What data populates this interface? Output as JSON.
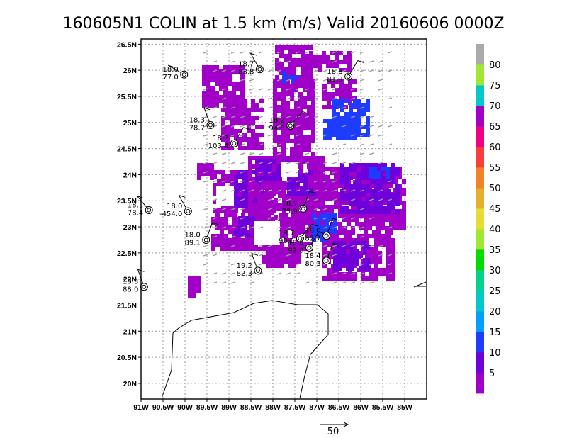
{
  "chart_data": {
    "type": "heatmap",
    "title": "160605N1 COLIN at 1.5 km (m/s) Valid 20160606 0000Z",
    "xlim": [
      -91.0,
      -84.5
    ],
    "ylim": [
      19.7,
      26.6
    ],
    "x_tick_labels": [
      "91W",
      "90.5W",
      "90W",
      "89.5W",
      "89W",
      "88.5W",
      "88W",
      "87.5W",
      "87W",
      "86.5W",
      "86W",
      "85.5W",
      "85W"
    ],
    "x_tick_values": [
      -91.0,
      -90.5,
      -90.0,
      -89.5,
      -89.0,
      -88.5,
      -88.0,
      -87.5,
      -87.0,
      -86.5,
      -86.0,
      -85.5,
      -85.0
    ],
    "y_tick_labels": [
      "20N",
      "20.5N",
      "21N",
      "21.5N",
      "22N",
      "22.5N",
      "23N",
      "23.5N",
      "24N",
      "24.5N",
      "25N",
      "25.5N",
      "26N",
      "26.5N"
    ],
    "y_tick_values": [
      20.0,
      20.5,
      21.0,
      21.5,
      22.0,
      22.5,
      23.0,
      23.5,
      24.0,
      24.5,
      25.0,
      25.5,
      26.0,
      26.5
    ],
    "grid": true,
    "colorbar": {
      "labels": [
        "5",
        "10",
        "15",
        "20",
        "25",
        "30",
        "35",
        "40",
        "45",
        "50",
        "55",
        "60",
        "65",
        "70",
        "75",
        "80"
      ],
      "colors": [
        "#a000c8",
        "#6e00dc",
        "#1e3cff",
        "#00a0ff",
        "#00c8c8",
        "#00d28c",
        "#00dc00",
        "#a0e632",
        "#e6dc32",
        "#e6af2d",
        "#f08228",
        "#fa3c3c",
        "#f00082",
        "#a000c8",
        "#00c8c8",
        "#a0e632",
        "#aaaaaa"
      ]
    },
    "vector_scale_label": "50",
    "stations": [
      {
        "lon": -90.02,
        "lat": 25.92,
        "top": "18.0",
        "bottom": "77.0"
      },
      {
        "lon": -88.3,
        "lat": 26.02,
        "top": "18.7",
        "bottom": "83.8"
      },
      {
        "lon": -86.28,
        "lat": 25.88,
        "top": "18.8",
        "bottom": "81.9"
      },
      {
        "lon": -89.42,
        "lat": 24.95,
        "top": "18.3",
        "bottom": "78.7"
      },
      {
        "lon": -87.6,
        "lat": 24.94,
        "top": "18.2",
        "bottom": "94.8"
      },
      {
        "lon": -88.88,
        "lat": 24.6,
        "top": "18.2",
        "bottom": "103.4"
      },
      {
        "lon": -90.82,
        "lat": 23.32,
        "top": "18.1",
        "bottom": "78.4"
      },
      {
        "lon": -89.93,
        "lat": 23.3,
        "top": "18.0",
        "bottom": "-454.0"
      },
      {
        "lon": -89.52,
        "lat": 22.75,
        "top": "18.0",
        "bottom": "89.1"
      },
      {
        "lon": -87.31,
        "lat": 23.35,
        "top": "18.7",
        "bottom": "75.9"
      },
      {
        "lon": -87.38,
        "lat": 22.78,
        "top": "18.7",
        "bottom": "90.5"
      },
      {
        "lon": -87.17,
        "lat": 22.6,
        "top": "18.6",
        "bottom": "92.0"
      },
      {
        "lon": -86.78,
        "lat": 22.83,
        "top": "18.0",
        "bottom": "82.7"
      },
      {
        "lon": -86.78,
        "lat": 22.35,
        "top": "18.4",
        "bottom": "80.3"
      },
      {
        "lon": -88.34,
        "lat": 22.16,
        "top": "19.2",
        "bottom": "82.3"
      },
      {
        "lon": -90.93,
        "lat": 21.85,
        "top": "18.3",
        "bottom": "88.0"
      }
    ]
  }
}
